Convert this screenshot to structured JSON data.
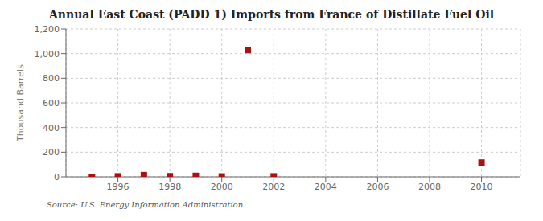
{
  "chart_data": {
    "type": "scatter",
    "title": "Annual East Coast (PADD 1) Imports from France of Distillate Fuel Oil",
    "y_label": "Thousand Barrels",
    "annotations": [
      "Source: U.S. Energy Information Administration"
    ],
    "x": [
      1995,
      1996,
      1997,
      1998,
      1999,
      2000,
      2001,
      2002,
      2010
    ],
    "values": [
      0,
      4,
      14,
      5,
      8,
      3,
      1029,
      4,
      116
    ],
    "color": "#aa1111",
    "marker": "square",
    "xlim": [
      1994,
      2011.5
    ],
    "xticks": [
      1996,
      1998,
      2000,
      2002,
      2004,
      2006,
      2008,
      2010
    ],
    "ylim": [
      0,
      1200
    ],
    "yticks": [
      0,
      200,
      400,
      600,
      800,
      {
        "value": 1000,
        "label": "1,000"
      },
      {
        "value": 1200,
        "label": "1,200"
      }
    ],
    "grid": true
  }
}
